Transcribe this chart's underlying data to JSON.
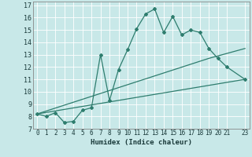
{
  "xlabel": "Humidex (Indice chaleur)",
  "bg_color": "#c8e8e8",
  "grid_color": "#b0d8d8",
  "line_color": "#2e7d6e",
  "xlim": [
    -0.5,
    23.5
  ],
  "ylim": [
    7,
    17.3
  ],
  "xticks": [
    0,
    1,
    2,
    3,
    4,
    5,
    6,
    7,
    8,
    9,
    10,
    11,
    12,
    13,
    14,
    15,
    16,
    17,
    18,
    19,
    20,
    21,
    23
  ],
  "yticks": [
    7,
    8,
    9,
    10,
    11,
    12,
    13,
    14,
    15,
    16,
    17
  ],
  "line1_x": [
    0,
    1,
    2,
    3,
    4,
    5,
    6,
    7,
    8,
    9,
    10,
    11,
    12,
    13,
    14,
    15,
    16,
    17,
    18,
    19,
    20,
    21,
    23
  ],
  "line1_y": [
    8.2,
    8.0,
    8.3,
    7.5,
    7.6,
    8.5,
    8.7,
    13.0,
    9.3,
    11.8,
    13.4,
    15.1,
    16.3,
    16.7,
    14.8,
    16.1,
    14.6,
    15.0,
    14.8,
    13.5,
    12.7,
    12.0,
    11.0
  ],
  "line2_x": [
    0,
    19,
    23
  ],
  "line2_y": [
    8.2,
    12.7,
    13.5
  ],
  "line3_x": [
    0,
    23
  ],
  "line3_y": [
    8.2,
    11.0
  ]
}
